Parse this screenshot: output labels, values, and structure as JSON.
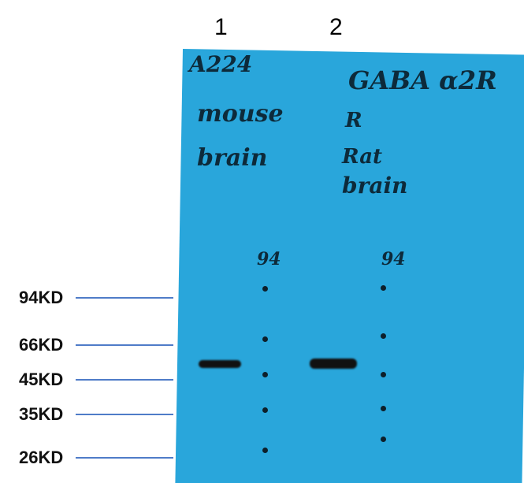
{
  "lanes": [
    {
      "number": "1"
    },
    {
      "number": "2"
    }
  ],
  "handwriting": {
    "lane1": [
      "A224",
      "mouse",
      "brain"
    ],
    "lane2": [
      "GABA α2R",
      "R",
      "Rat",
      "brain"
    ],
    "ladder_lane1": "94",
    "ladder_lane2": "94"
  },
  "markers": [
    {
      "label": "94KD"
    },
    {
      "label": "66KD"
    },
    {
      "label": "45KD"
    },
    {
      "label": "35KD"
    },
    {
      "label": "26KD"
    }
  ],
  "colors": {
    "membrane": "#29a6db",
    "marker_line": "#4f7cc8",
    "band": "#111111"
  }
}
